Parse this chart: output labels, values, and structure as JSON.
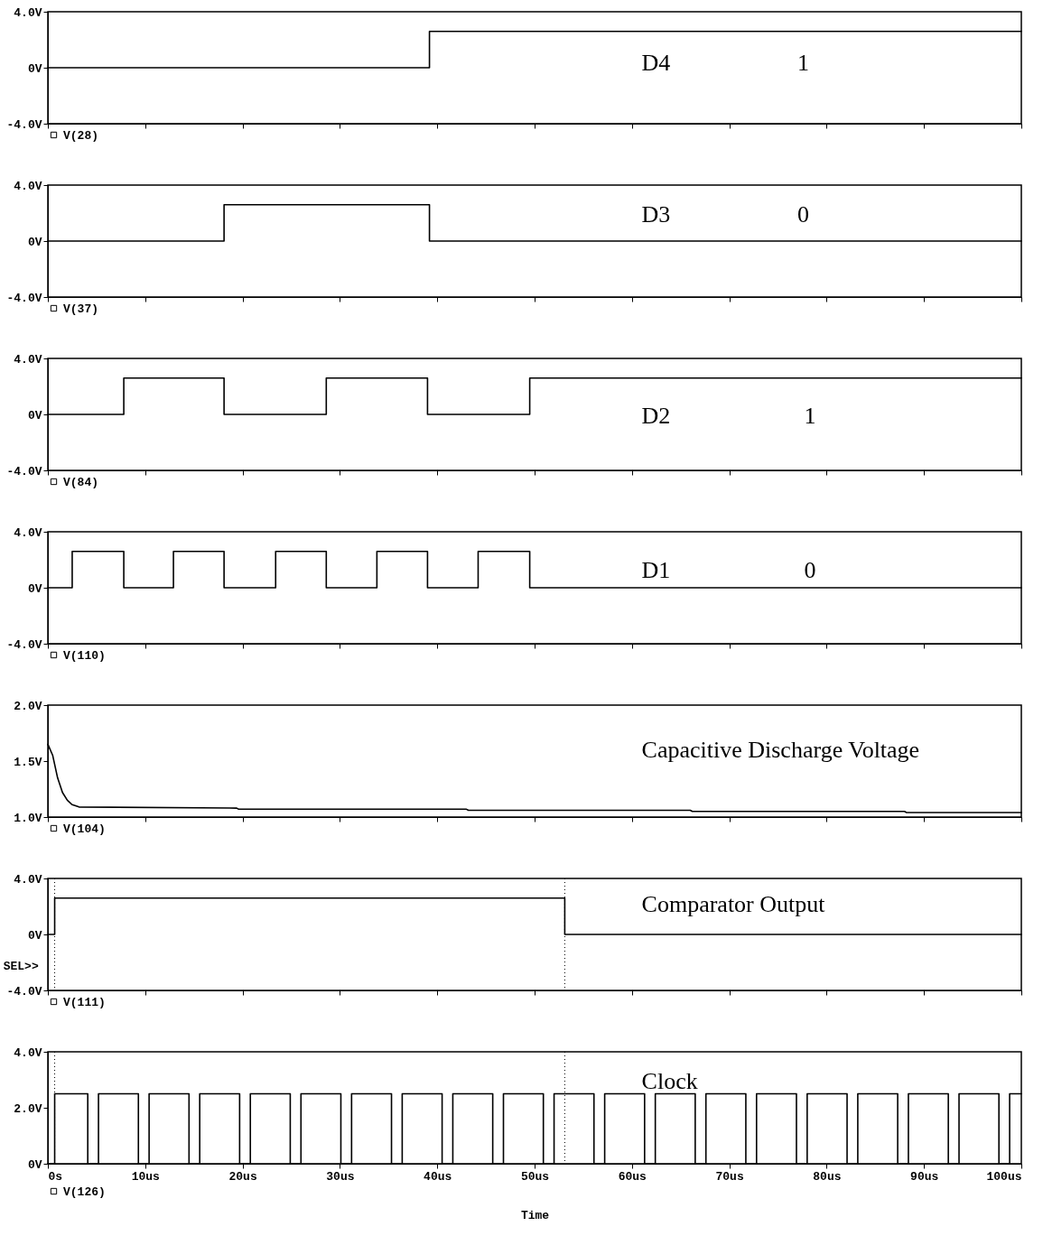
{
  "chart_data": [
    {
      "type": "line",
      "xlim": [
        0,
        100
      ],
      "ylim": [
        -4,
        4
      ],
      "yticks": [
        {
          "value": 4,
          "label": "4.0V"
        },
        {
          "value": 0,
          "label": "0V"
        },
        {
          "value": -4,
          "label": "-4.0V"
        }
      ],
      "xticks": [
        {
          "value": 0,
          "label": null
        },
        {
          "value": 10,
          "label": null
        },
        {
          "value": 20,
          "label": null
        },
        {
          "value": 30,
          "label": null
        },
        {
          "value": 40,
          "label": null
        },
        {
          "value": 50,
          "label": null
        },
        {
          "value": 60,
          "label": null
        },
        {
          "value": 70,
          "label": null
        },
        {
          "value": 80,
          "label": null
        },
        {
          "value": 90,
          "label": null
        },
        {
          "value": 100,
          "label": null
        }
      ],
      "tick_labels": "y",
      "legend": "bottom left",
      "annotations": [
        "D4",
        "1"
      ],
      "x": [
        0,
        39.2,
        39.2,
        100
      ],
      "series": [
        {
          "name": "V(28)",
          "color": "#000000",
          "values": [
            0,
            0,
            2.6,
            2.6
          ]
        }
      ]
    },
    {
      "type": "line",
      "xlim": [
        0,
        100
      ],
      "ylim": [
        -4,
        4
      ],
      "yticks": [
        {
          "value": 4,
          "label": "4.0V"
        },
        {
          "value": 0,
          "label": "0V"
        },
        {
          "value": -4,
          "label": "-4.0V"
        }
      ],
      "xticks": [
        {
          "value": 0,
          "label": null
        },
        {
          "value": 10,
          "label": null
        },
        {
          "value": 20,
          "label": null
        },
        {
          "value": 30,
          "label": null
        },
        {
          "value": 40,
          "label": null
        },
        {
          "value": 50,
          "label": null
        },
        {
          "value": 60,
          "label": null
        },
        {
          "value": 70,
          "label": null
        },
        {
          "value": 80,
          "label": null
        },
        {
          "value": 90,
          "label": null
        },
        {
          "value": 100,
          "label": null
        }
      ],
      "tick_labels": "y",
      "legend": "bottom left",
      "annotations": [
        "D3",
        "0"
      ],
      "x": [
        0,
        18.1,
        18.1,
        39.2,
        39.2,
        100
      ],
      "series": [
        {
          "name": "V(37)",
          "color": "#000000",
          "values": [
            0,
            0,
            2.6,
            2.6,
            0,
            0
          ]
        }
      ]
    },
    {
      "type": "line",
      "xlim": [
        0,
        100
      ],
      "ylim": [
        -4,
        4
      ],
      "yticks": [
        {
          "value": 4,
          "label": "4.0V"
        },
        {
          "value": 0,
          "label": "0V"
        },
        {
          "value": -4,
          "label": "-4.0V"
        }
      ],
      "xticks": [
        {
          "value": 0,
          "label": null
        },
        {
          "value": 10,
          "label": null
        },
        {
          "value": 20,
          "label": null
        },
        {
          "value": 30,
          "label": null
        },
        {
          "value": 40,
          "label": null
        },
        {
          "value": 50,
          "label": null
        },
        {
          "value": 60,
          "label": null
        },
        {
          "value": 70,
          "label": null
        },
        {
          "value": 80,
          "label": null
        },
        {
          "value": 90,
          "label": null
        },
        {
          "value": 100,
          "label": null
        }
      ],
      "tick_labels": "y",
      "legend": "bottom left",
      "annotations": [
        "D2",
        "1"
      ],
      "x": [
        0,
        7.8,
        7.8,
        18.1,
        18.1,
        28.6,
        28.6,
        39.0,
        39.0,
        49.5,
        49.5,
        100
      ],
      "series": [
        {
          "name": "V(84)",
          "color": "#000000",
          "values": [
            0,
            0,
            2.6,
            2.6,
            0,
            0,
            2.6,
            2.6,
            0,
            0,
            2.6,
            2.6
          ]
        }
      ]
    },
    {
      "type": "line",
      "xlim": [
        0,
        100
      ],
      "ylim": [
        -4,
        4
      ],
      "yticks": [
        {
          "value": 4,
          "label": "4.0V"
        },
        {
          "value": 0,
          "label": "0V"
        },
        {
          "value": -4,
          "label": "-4.0V"
        }
      ],
      "xticks": [
        {
          "value": 0,
          "label": null
        },
        {
          "value": 10,
          "label": null
        },
        {
          "value": 20,
          "label": null
        },
        {
          "value": 30,
          "label": null
        },
        {
          "value": 40,
          "label": null
        },
        {
          "value": 50,
          "label": null
        },
        {
          "value": 60,
          "label": null
        },
        {
          "value": 70,
          "label": null
        },
        {
          "value": 80,
          "label": null
        },
        {
          "value": 90,
          "label": null
        },
        {
          "value": 100,
          "label": null
        }
      ],
      "tick_labels": "y",
      "legend": "bottom left",
      "annotations": [
        "D1",
        "0"
      ],
      "x": [
        0,
        2.5,
        2.5,
        7.8,
        7.8,
        12.9,
        12.9,
        18.1,
        18.1,
        23.4,
        23.4,
        28.6,
        28.6,
        33.8,
        33.8,
        39.0,
        39.0,
        44.2,
        44.2,
        49.5,
        49.5,
        100
      ],
      "series": [
        {
          "name": "V(110)",
          "color": "#000000",
          "values": [
            0,
            0,
            2.6,
            2.6,
            0,
            0,
            2.6,
            2.6,
            0,
            0,
            2.6,
            2.6,
            0,
            0,
            2.6,
            2.6,
            0,
            0,
            2.6,
            2.6,
            0,
            0
          ]
        }
      ]
    },
    {
      "type": "line",
      "xlim": [
        0,
        100
      ],
      "ylim": [
        1,
        2
      ],
      "yticks": [
        {
          "value": 1,
          "label": "1.0V"
        },
        {
          "value": 1.5,
          "label": "1.5V"
        },
        {
          "value": 2,
          "label": "2.0V"
        }
      ],
      "xticks": [
        {
          "value": 0,
          "label": null
        },
        {
          "value": 10,
          "label": null
        },
        {
          "value": 20,
          "label": null
        },
        {
          "value": 30,
          "label": null
        },
        {
          "value": 40,
          "label": null
        },
        {
          "value": 50,
          "label": null
        },
        {
          "value": 60,
          "label": null
        },
        {
          "value": 70,
          "label": null
        },
        {
          "value": 80,
          "label": null
        },
        {
          "value": 90,
          "label": null
        },
        {
          "value": 100,
          "label": null
        }
      ],
      "tick_labels": "y",
      "legend": "bottom left",
      "annotations": [
        "Capacitive Discharge Voltage"
      ],
      "x": [
        0,
        0.5,
        1,
        1.5,
        2,
        2.5,
        3.2,
        19.4,
        19.6,
        43,
        43.2,
        66,
        66.2,
        88,
        88.2,
        100
      ],
      "series": [
        {
          "name": "V(104)",
          "color": "#000000",
          "values": [
            1.65,
            1.55,
            1.35,
            1.22,
            1.15,
            1.11,
            1.09,
            1.08,
            1.07,
            1.07,
            1.06,
            1.06,
            1.05,
            1.05,
            1.04,
            1.04
          ]
        }
      ]
    },
    {
      "type": "line",
      "xlim": [
        0,
        100
      ],
      "ylim": [
        -4,
        4
      ],
      "yticks": [
        {
          "value": 4,
          "label": "4.0V"
        },
        {
          "value": 0,
          "label": "0V"
        },
        {
          "value": -4,
          "label": "-4.0V"
        }
      ],
      "xticks": [
        {
          "value": 0,
          "label": null
        },
        {
          "value": 10,
          "label": null
        },
        {
          "value": 20,
          "label": null
        },
        {
          "value": 30,
          "label": null
        },
        {
          "value": 40,
          "label": null
        },
        {
          "value": 50,
          "label": null
        },
        {
          "value": 60,
          "label": null
        },
        {
          "value": 70,
          "label": null
        },
        {
          "value": 80,
          "label": null
        },
        {
          "value": 90,
          "label": null
        },
        {
          "value": 100,
          "label": null
        }
      ],
      "tick_labels": "y",
      "legend": "bottom left",
      "annotations": [
        "Comparator Output",
        "SEL>>"
      ],
      "x": [
        0,
        0.7,
        0.7,
        53.1,
        53.1,
        100
      ],
      "ref_lines": [
        {
          "axis": "x",
          "value": 0.7,
          "line_style": "dotted"
        },
        {
          "axis": "x",
          "value": 53.1,
          "line_style": "dotted"
        }
      ],
      "series": [
        {
          "name": "V(111)",
          "color": "#000000",
          "values": [
            0,
            0,
            2.6,
            2.6,
            0,
            0
          ]
        }
      ]
    },
    {
      "type": "line",
      "xlim": [
        0,
        100
      ],
      "ylim": [
        0,
        4
      ],
      "yticks": [
        {
          "value": 4,
          "label": "4.0V"
        },
        {
          "value": 2,
          "label": "2.0V"
        },
        {
          "value": 0,
          "label": "0V"
        }
      ],
      "xticks": [
        {
          "value": 0,
          "label": "0s"
        },
        {
          "value": 10,
          "label": "10us"
        },
        {
          "value": 20,
          "label": "20us"
        },
        {
          "value": 30,
          "label": "30us"
        },
        {
          "value": 40,
          "label": "40us"
        },
        {
          "value": 50,
          "label": "50us"
        },
        {
          "value": 60,
          "label": "60us"
        },
        {
          "value": 70,
          "label": "70us"
        },
        {
          "value": 80,
          "label": "80us"
        },
        {
          "value": 90,
          "label": "90us"
        },
        {
          "value": 100,
          "label": "100us"
        }
      ],
      "xlabel": "Time",
      "legend": "bottom left",
      "annotations": [
        "Clock"
      ],
      "ref_lines": [
        {
          "axis": "x",
          "value": 0.7,
          "line_style": "dotted"
        },
        {
          "axis": "x",
          "value": 53.1,
          "line_style": "dotted"
        }
      ],
      "x": [
        0,
        0.7,
        0.7,
        4.1,
        4.1,
        5.2,
        5.2,
        9.3,
        9.3,
        10.4,
        10.4,
        14.5,
        14.5,
        15.6,
        15.6,
        19.7,
        19.7,
        20.8,
        20.8,
        24.9,
        24.9,
        26,
        26,
        30.1,
        30.1,
        31.2,
        31.2,
        35.3,
        35.3,
        36.4,
        36.4,
        40.5,
        40.5,
        41.6,
        41.6,
        45.7,
        45.7,
        46.8,
        46.8,
        50.9,
        50.9,
        52,
        52,
        56.1,
        56.1,
        57.2,
        57.2,
        61.3,
        61.3,
        62.4,
        62.4,
        66.5,
        66.5,
        67.6,
        67.6,
        71.7,
        71.7,
        72.8,
        72.8,
        76.9,
        76.9,
        78,
        78,
        82.1,
        82.1,
        83.2,
        83.2,
        87.3,
        87.3,
        88.4,
        88.4,
        92.5,
        92.5,
        93.6,
        93.6,
        97.7,
        97.7,
        98.8,
        98.8,
        100
      ],
      "series": [
        {
          "name": "V(126)",
          "color": "#000000",
          "values": [
            0,
            0,
            2.5,
            2.5,
            0,
            0,
            2.5,
            2.5,
            0,
            0,
            2.5,
            2.5,
            0,
            0,
            2.5,
            2.5,
            0,
            0,
            2.5,
            2.5,
            0,
            0,
            2.5,
            2.5,
            0,
            0,
            2.5,
            2.5,
            0,
            0,
            2.5,
            2.5,
            0,
            0,
            2.5,
            2.5,
            0,
            0,
            2.5,
            2.5,
            0,
            0,
            2.5,
            2.5,
            0,
            0,
            2.5,
            2.5,
            0,
            0,
            2.5,
            2.5,
            0,
            0,
            2.5,
            2.5,
            0,
            0,
            2.5,
            2.5,
            0,
            0,
            2.5,
            2.5,
            0,
            0,
            2.5,
            2.5,
            0,
            0,
            2.5,
            2.5,
            0,
            0,
            2.5,
            2.5,
            0,
            0,
            2.5,
            2.5
          ]
        }
      ]
    }
  ]
}
